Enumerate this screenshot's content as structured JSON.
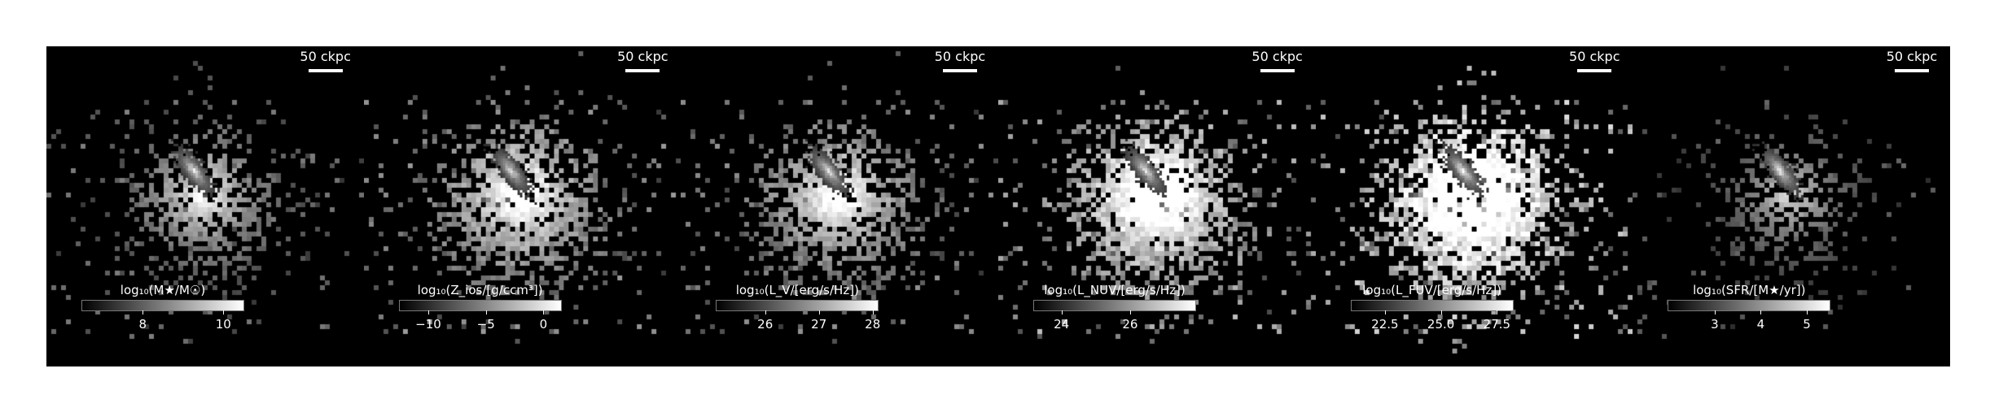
{
  "panels": [
    {
      "scalebar_label": "50 ckpc",
      "colorbar_label": "log₁₀(M★/M☉)",
      "ticks": [
        {
          "value": 8,
          "label": "8"
        },
        {
          "value": 10,
          "label": "10"
        }
      ],
      "range": [
        6.5,
        10.5
      ],
      "fill_level": 0.35,
      "core_brightness": 0.9
    },
    {
      "scalebar_label": "50 ckpc",
      "colorbar_label": "log₁₀(Z_ios/[g/ccm³])",
      "ticks": [
        {
          "value": -10,
          "label": "−10"
        },
        {
          "value": -5,
          "label": "−5"
        },
        {
          "value": 0,
          "label": "0"
        }
      ],
      "range": [
        -12.5,
        1.5
      ],
      "fill_level": 0.55,
      "core_brightness": 0.85
    },
    {
      "scalebar_label": "50 ckpc",
      "colorbar_label": "log₁₀(L_V/[erg/s/Hz])",
      "ticks": [
        {
          "value": 26,
          "label": "26"
        },
        {
          "value": 27,
          "label": "27"
        },
        {
          "value": 28,
          "label": "28"
        }
      ],
      "range": [
        25.1,
        28.1
      ],
      "fill_level": 0.5,
      "core_brightness": 0.9
    },
    {
      "scalebar_label": "50 ckpc",
      "colorbar_label": "log₁₀(L_NUV/[erg/s/Hz])",
      "ticks": [
        {
          "value": 24,
          "label": "24"
        },
        {
          "value": 26,
          "label": "26"
        }
      ],
      "range": [
        23.2,
        27.9
      ],
      "fill_level": 0.75,
      "core_brightness": 0.9
    },
    {
      "scalebar_label": "50 ckpc",
      "colorbar_label": "log₁₀(L_FUV/[erg/s/Hz])",
      "ticks": [
        {
          "value": 22.5,
          "label": "22.5"
        },
        {
          "value": 25.0,
          "label": "25.0"
        },
        {
          "value": 27.5,
          "label": "27.5"
        }
      ],
      "range": [
        21.0,
        28.2
      ],
      "fill_level": 0.95,
      "core_brightness": 0.95
    },
    {
      "scalebar_label": "50 ckpc",
      "colorbar_label": "log₁₀(SFR/[M★/yr])",
      "ticks": [
        {
          "value": 3,
          "label": "3"
        },
        {
          "value": 4,
          "label": "4"
        },
        {
          "value": 5,
          "label": "5"
        }
      ],
      "range": [
        2.0,
        5.5
      ],
      "fill_level": 0.2,
      "core_brightness": 0.9
    }
  ]
}
